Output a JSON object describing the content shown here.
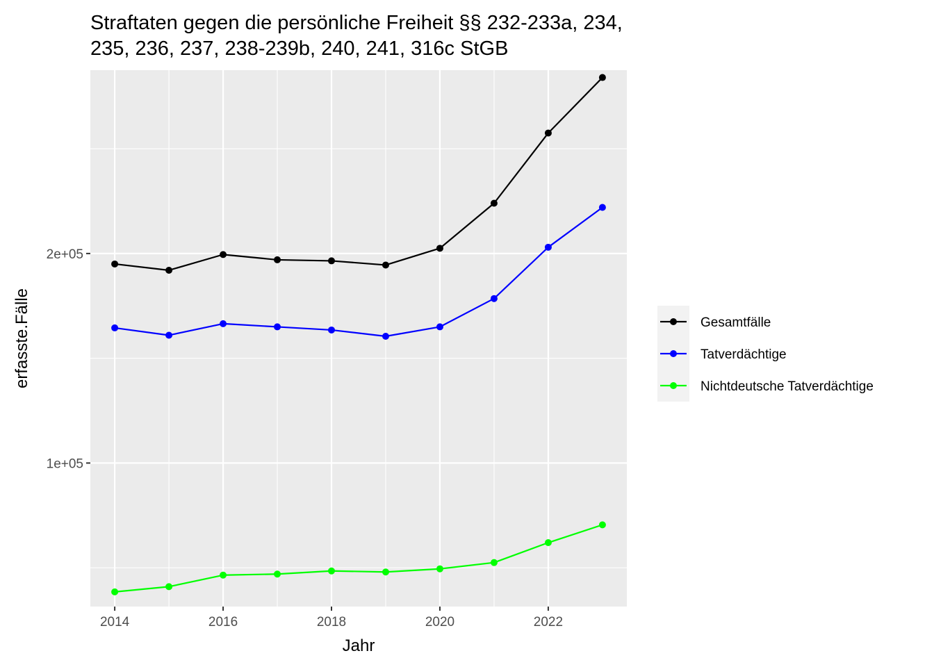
{
  "chart_data": {
    "type": "line",
    "title_lines": [
      "Straftaten gegen die persönliche Freiheit §§ 232-233a, 234,",
      "235, 236, 237, 238-239b, 240, 241, 316c StGB"
    ],
    "xlabel": "Jahr",
    "ylabel": "erfasste.Fälle",
    "x": [
      2014,
      2015,
      2016,
      2017,
      2018,
      2019,
      2020,
      2021,
      2022,
      2023
    ],
    "xlim": [
      2013.55,
      2023.45
    ],
    "ylim": [
      31500,
      287500
    ],
    "x_ticks": [
      2014,
      2016,
      2018,
      2020,
      2022
    ],
    "x_tick_labels": [
      "2014",
      "2016",
      "2018",
      "2020",
      "2022"
    ],
    "y_ticks": [
      100000,
      200000
    ],
    "y_tick_labels": [
      "1e+05",
      "2e+05"
    ],
    "y_minor_ticks": [
      50000,
      150000,
      250000
    ],
    "grid": true,
    "legend_position": "right",
    "series": [
      {
        "name": "Gesamtfälle",
        "color": "#000000",
        "values": [
          195000,
          192000,
          199500,
          197000,
          196500,
          194500,
          202500,
          224000,
          257500,
          284000
        ]
      },
      {
        "name": "Tatverdächtige",
        "color": "#0000ff",
        "values": [
          164500,
          161000,
          166500,
          165000,
          163500,
          160500,
          165000,
          178500,
          203000,
          222000
        ]
      },
      {
        "name": "Nichtdeutsche Tatverdächtige",
        "color": "#00ff00",
        "values": [
          38500,
          41000,
          46500,
          47000,
          48500,
          48000,
          49500,
          52500,
          62000,
          70500
        ]
      }
    ]
  }
}
